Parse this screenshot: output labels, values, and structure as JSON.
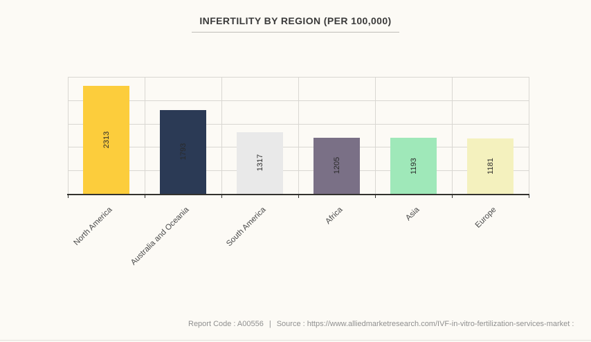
{
  "page": {
    "background": "#FCFAF5",
    "footer": {
      "report_code": "Report Code : A00556",
      "separator": "|",
      "source": "Source : https://www.alliedmarketresearch.com/IVF-in-vitro-fertilization-services-market :"
    }
  },
  "chart_data": {
    "type": "bar",
    "title": "INFERTILITY BY REGION (PER 100,000)",
    "categories": [
      "North America",
      "Australia and Oceania",
      "South America",
      "Africa",
      "Asia",
      "Europe"
    ],
    "values": [
      2313,
      1793,
      1317,
      1205,
      1193,
      1181
    ],
    "bar_colors": [
      "#FCCD3C",
      "#2B3A55",
      "#E9E9E9",
      "#7A7086",
      "#9FE8B9",
      "#F4F1BE"
    ],
    "value_label_color": "#2A2A2A",
    "value_label_position": "inside-center-rotated-90",
    "category_label_rotation": -45,
    "xlabel": "",
    "ylabel": "",
    "ylim": [
      0,
      2500
    ],
    "y_grid_step": 500,
    "y_tick_labels_shown": false,
    "grid": true,
    "grid_color": "#D9D7D2",
    "axis_color": "#33322E",
    "legend": "none"
  }
}
